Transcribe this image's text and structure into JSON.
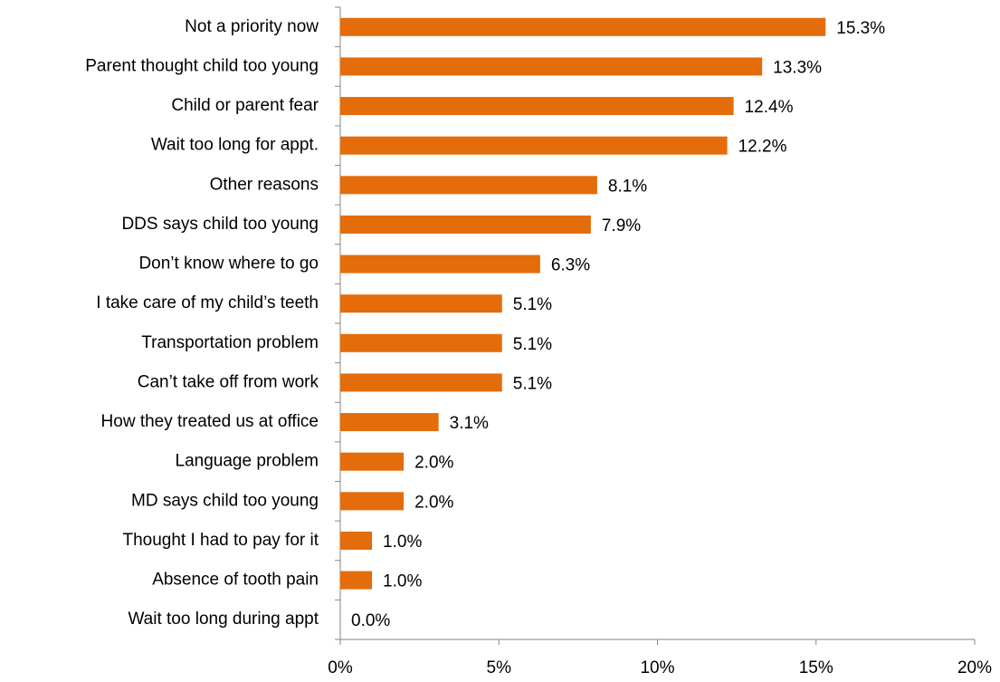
{
  "chart_data": {
    "type": "hbar",
    "categories": [
      "Not a priority now",
      "Parent thought child too young",
      "Child or parent fear",
      "Wait too long for appt.",
      "Other reasons",
      "DDS says child too young",
      "Don’t know where to go",
      "I take care of my child’s teeth",
      "Transportation problem",
      "Can’t take off from work",
      "How they treated us at office",
      "Language problem",
      "MD says child too young",
      "Thought I had to pay for it",
      "Absence of tooth pain",
      "Wait too long during appt"
    ],
    "values": [
      15.3,
      13.3,
      12.4,
      12.2,
      8.1,
      7.9,
      6.3,
      5.1,
      5.1,
      5.1,
      3.1,
      2.0,
      2.0,
      1.0,
      1.0,
      0.0
    ],
    "value_labels": [
      "15.3%",
      "13.3%",
      "12.4%",
      "12.2%",
      "8.1%",
      "7.9%",
      "6.3%",
      "5.1%",
      "5.1%",
      "5.1%",
      "3.1%",
      "2.0%",
      "2.0%",
      "1.0%",
      "1.0%",
      "0.0%"
    ],
    "color": "#e46c0a",
    "xlim": [
      0,
      20
    ],
    "xticks": [
      {
        "value": 0,
        "label": "0%"
      },
      {
        "value": 5,
        "label": "5%"
      },
      {
        "value": 10,
        "label": "10%"
      },
      {
        "value": 15,
        "label": "15%"
      },
      {
        "value": 20,
        "label": "20%"
      }
    ],
    "grid": false
  }
}
